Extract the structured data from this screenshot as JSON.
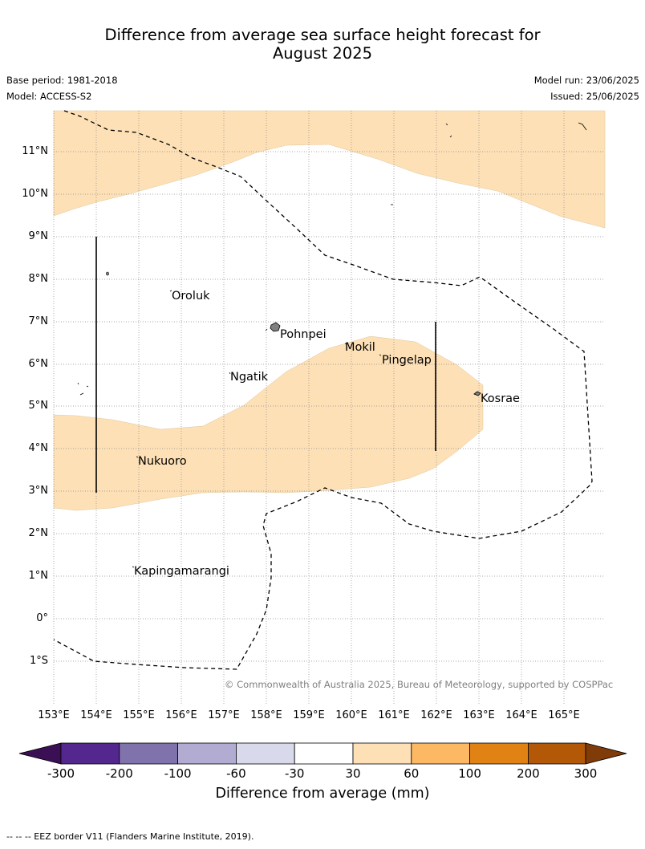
{
  "title_line1": "Difference from average sea surface height forecast for",
  "title_line2": "August 2025",
  "base_period": "Base period: 1981-2018",
  "model": "Model: ACCESS-S2",
  "model_run": "Model run: 23/06/2025",
  "issued": "Issued: 25/06/2025",
  "lat_labels": [
    "11°N",
    "10°N",
    "9°N",
    "8°N",
    "7°N",
    "6°N",
    "5°N",
    "4°N",
    "3°N",
    "2°N",
    "1°N",
    "0°",
    "1°S"
  ],
  "lon_labels": [
    "153°E",
    "154°E",
    "155°E",
    "156°E",
    "157°E",
    "158°E",
    "159°E",
    "160°E",
    "161°E",
    "162°E",
    "163°E",
    "164°E",
    "165°E"
  ],
  "places": {
    "oroluk": "Oroluk",
    "pohnpei": "Pohnpei",
    "mokil": "Mokil",
    "pingelap": "Pingelap",
    "ngatik": "Ngatik",
    "kosrae": "Kosrae",
    "nukuoro": "Nukuoro",
    "kapingamarangi": "Kapingamarangi"
  },
  "copyright": "© Commonwealth of Australia 2025, Bureau of Meteorology, supported by COSPPac",
  "colorbar": {
    "ticks": [
      "-300",
      "-200",
      "-100",
      "-60",
      "-30",
      "30",
      "60",
      "100",
      "200",
      "300"
    ],
    "colors": [
      "#3b0f54",
      "#54278f",
      "#8073ac",
      "#b2abd2",
      "#d8daeb",
      "#ffffff",
      "#fee0b6",
      "#fdb863",
      "#e08214",
      "#b35806",
      "#7f3b08"
    ],
    "label": "Difference from average (mm)"
  },
  "footnote": "--  --  -- EEZ border V11 (Flanders Marine Institute, 2019).",
  "colors": {
    "anomaly_30_60": "#fde0b6",
    "land": "#808080"
  }
}
